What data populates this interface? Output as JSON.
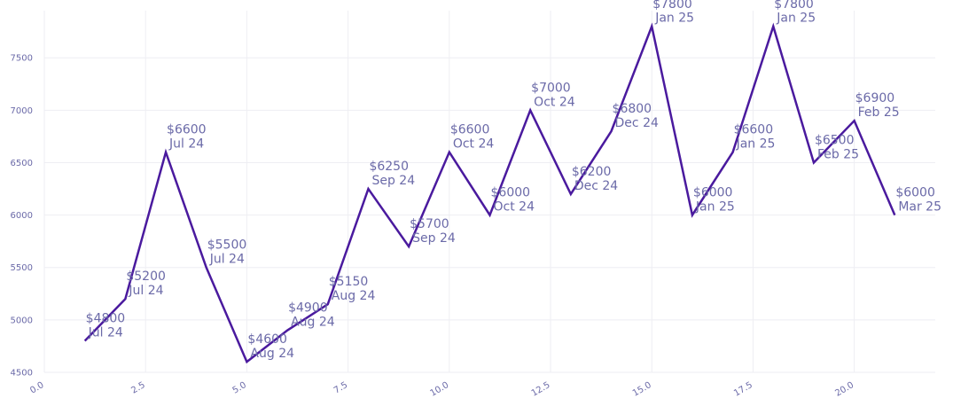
{
  "chart_data": {
    "type": "line",
    "title": "",
    "xlabel": "",
    "ylabel": "",
    "xlim": [
      0,
      22
    ],
    "ylim": [
      4500,
      7950
    ],
    "grid": true,
    "line_color": "#4a1a9e",
    "label_color": "#6b6aa8",
    "x_ticks": [
      0.0,
      2.5,
      5.0,
      7.5,
      10.0,
      12.5,
      15.0,
      17.5,
      20.0
    ],
    "x_tick_labels": [
      "0.0",
      "2.5",
      "5.0",
      "7.5",
      "10.0",
      "12.5",
      "15.0",
      "17.5",
      "20.0"
    ],
    "y_ticks": [
      4500,
      5000,
      5500,
      6000,
      6500,
      7000,
      7500
    ],
    "y_tick_labels": [
      "4500",
      "5000",
      "5500",
      "6000",
      "6500",
      "7000",
      "7500"
    ],
    "points": [
      {
        "x": 1,
        "y": 4800,
        "price": "$4800",
        "period": "Jul 24"
      },
      {
        "x": 2,
        "y": 5200,
        "price": "$5200",
        "period": "Jul 24"
      },
      {
        "x": 3,
        "y": 6600,
        "price": "$6600",
        "period": "Jul 24"
      },
      {
        "x": 4,
        "y": 5500,
        "price": "$5500",
        "period": "Jul 24"
      },
      {
        "x": 5,
        "y": 4600,
        "price": "$4600",
        "period": "Aug 24"
      },
      {
        "x": 6,
        "y": 4900,
        "price": "$4900",
        "period": "Aug 24"
      },
      {
        "x": 7,
        "y": 5150,
        "price": "$5150",
        "period": "Aug 24"
      },
      {
        "x": 8,
        "y": 6250,
        "price": "$6250",
        "period": "Sep 24"
      },
      {
        "x": 9,
        "y": 5700,
        "price": "$5700",
        "period": "Sep 24"
      },
      {
        "x": 10,
        "y": 6600,
        "price": "$6600",
        "period": "Oct 24"
      },
      {
        "x": 11,
        "y": 6000,
        "price": "$6000",
        "period": "Oct 24"
      },
      {
        "x": 12,
        "y": 7000,
        "price": "$7000",
        "period": "Oct 24"
      },
      {
        "x": 13,
        "y": 6200,
        "price": "$6200",
        "period": "Dec 24"
      },
      {
        "x": 14,
        "y": 6800,
        "price": "$6800",
        "period": "Dec 24"
      },
      {
        "x": 15,
        "y": 7800,
        "price": "$7800",
        "period": "Jan 25"
      },
      {
        "x": 16,
        "y": 6000,
        "price": "$6000",
        "period": "Jan 25"
      },
      {
        "x": 17,
        "y": 6600,
        "price": "$6600",
        "period": "Jan 25"
      },
      {
        "x": 18,
        "y": 7800,
        "price": "$7800",
        "period": "Jan 25"
      },
      {
        "x": 19,
        "y": 6500,
        "price": "$6500",
        "period": "Feb 25"
      },
      {
        "x": 20,
        "y": 6900,
        "price": "$6900",
        "period": "Feb 25"
      },
      {
        "x": 21,
        "y": 6000,
        "price": "$6000",
        "period": "Mar 25"
      }
    ]
  }
}
